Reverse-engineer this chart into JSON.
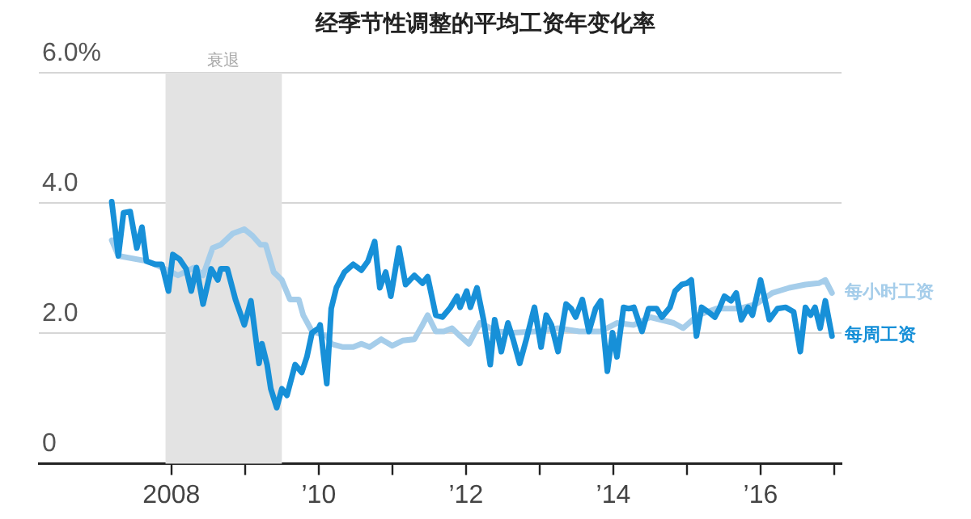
{
  "chart_data": {
    "type": "line",
    "title": "经季节性调整的平均工资年变化率",
    "xlim": [
      2006.2,
      2017.1
    ],
    "ylim": [
      0,
      6
    ],
    "xticks": [
      {
        "value": 2008,
        "label": "2008"
      },
      {
        "value": 2009,
        "label": null
      },
      {
        "value": 2010,
        "label": "’10"
      },
      {
        "value": 2011,
        "label": null
      },
      {
        "value": 2012,
        "label": "’12"
      },
      {
        "value": 2013,
        "label": null
      },
      {
        "value": 2014,
        "label": "’14"
      },
      {
        "value": 2015,
        "label": null
      },
      {
        "value": 2016,
        "label": "’16"
      },
      {
        "value": 2017,
        "label": null
      }
    ],
    "yticks": [
      {
        "value": 0,
        "label": "0"
      },
      {
        "value": 2,
        "label": "2.0"
      },
      {
        "value": 4,
        "label": "4.0"
      },
      {
        "value": 6,
        "label": "6.0%"
      }
    ],
    "grid": "y",
    "marker": "none",
    "bands": [
      {
        "axis": "x",
        "from": 2007.92,
        "to": 2009.5,
        "label": "衰退",
        "color": "#e3e3e3"
      }
    ],
    "series": [
      {
        "name": "每小时工资",
        "color": "#a5cdea",
        "x": [
          2007.19,
          2007.28,
          2007.35,
          2007.44,
          2007.53,
          2007.6,
          2007.66,
          2007.78,
          2007.87,
          2008.09,
          2008.31,
          2008.43,
          2008.56,
          2008.67,
          2008.83,
          2008.99,
          2009.1,
          2009.21,
          2009.28,
          2009.39,
          2009.5,
          2009.61,
          2009.73,
          2009.79,
          2009.91,
          2010.11,
          2010.17,
          2010.33,
          2010.47,
          2010.58,
          2010.69,
          2010.85,
          2011.0,
          2011.14,
          2011.3,
          2011.41,
          2011.48,
          2011.59,
          2011.7,
          2011.81,
          2011.92,
          2012.04,
          2012.19,
          2012.42,
          2012.64,
          2012.93,
          2013.25,
          2013.54,
          2013.83,
          2014.05,
          2014.28,
          2014.5,
          2014.82,
          2014.95,
          2015.15,
          2015.4,
          2015.71,
          2015.94,
          2016.16,
          2016.39,
          2016.61,
          2016.79,
          2016.88,
          2016.97
        ],
        "values": [
          3.43,
          3.19,
          null,
          null,
          null,
          null,
          3.11,
          3.06,
          3.01,
          2.89,
          3.01,
          2.89,
          3.31,
          3.36,
          3.53,
          3.6,
          3.5,
          3.36,
          3.36,
          2.94,
          2.82,
          2.52,
          2.52,
          2.28,
          2.03,
          1.96,
          1.84,
          1.79,
          1.79,
          1.84,
          1.79,
          1.91,
          1.81,
          1.89,
          1.91,
          2.13,
          2.28,
          2.03,
          2.03,
          2.08,
          1.96,
          1.84,
          2.16,
          2.03,
          2.01,
          2.03,
          2.08,
          2.03,
          2.03,
          2.16,
          2.13,
          2.25,
          2.16,
          2.08,
          2.28,
          2.38,
          2.38,
          2.45,
          2.62,
          2.7,
          2.75,
          2.77,
          2.82,
          2.62
        ]
      },
      {
        "name": "每周工资",
        "color": "#1790d8",
        "x": [
          2007.19,
          2007.28,
          2007.35,
          2007.44,
          2007.53,
          2007.6,
          2007.66,
          2007.78,
          2007.87,
          2007.96,
          2008.02,
          2008.11,
          2008.2,
          2008.27,
          2008.34,
          2008.43,
          2008.54,
          2008.63,
          2008.67,
          2008.76,
          2008.87,
          2008.99,
          2009.08,
          2009.19,
          2009.23,
          2009.3,
          2009.35,
          2009.43,
          2009.5,
          2009.57,
          2009.68,
          2009.77,
          2009.84,
          2009.91,
          2010.0,
          2010.02,
          2010.11,
          2010.17,
          2010.24,
          2010.35,
          2010.47,
          2010.58,
          2010.67,
          2010.76,
          2010.83,
          2010.91,
          2010.98,
          2011.09,
          2011.18,
          2011.3,
          2011.41,
          2011.48,
          2011.59,
          2011.68,
          2011.79,
          2011.88,
          2011.92,
          2012.01,
          2012.06,
          2012.15,
          2012.24,
          2012.33,
          2012.39,
          2012.48,
          2012.57,
          2012.64,
          2012.73,
          2012.82,
          2012.93,
          2013.02,
          2013.09,
          2013.16,
          2013.25,
          2013.36,
          2013.43,
          2013.49,
          2013.58,
          2013.67,
          2013.76,
          2013.83,
          2013.92,
          2013.99,
          2014.05,
          2014.14,
          2014.21,
          2014.28,
          2014.39,
          2014.48,
          2014.59,
          2014.66,
          2014.77,
          2014.84,
          2014.93,
          2015.0,
          2015.06,
          2015.13,
          2015.2,
          2015.29,
          2015.38,
          2015.44,
          2015.51,
          2015.6,
          2015.67,
          2015.74,
          2015.83,
          2015.89,
          2016.0,
          2016.12,
          2016.23,
          2016.34,
          2016.45,
          2016.54,
          2016.61,
          2016.68,
          2016.74,
          2016.81,
          2016.88,
          2016.97
        ],
        "values": [
          4.02,
          3.19,
          3.85,
          3.87,
          3.31,
          3.63,
          3.11,
          3.06,
          3.06,
          2.65,
          3.21,
          3.14,
          2.99,
          2.65,
          3.01,
          2.45,
          2.99,
          2.82,
          2.99,
          2.99,
          2.52,
          2.13,
          2.5,
          1.54,
          1.84,
          1.52,
          1.15,
          0.86,
          1.15,
          1.05,
          1.52,
          1.4,
          1.64,
          2.01,
          2.08,
          2.13,
          1.23,
          2.38,
          2.7,
          2.94,
          3.06,
          2.97,
          3.11,
          3.41,
          2.7,
          2.94,
          2.57,
          3.31,
          2.75,
          2.89,
          2.77,
          2.87,
          2.28,
          2.25,
          2.4,
          2.57,
          2.4,
          2.65,
          2.4,
          2.7,
          2.2,
          1.52,
          2.21,
          1.72,
          2.16,
          1.91,
          1.54,
          1.91,
          2.4,
          1.79,
          2.28,
          2.13,
          1.72,
          2.45,
          2.38,
          2.25,
          2.52,
          2.03,
          2.38,
          2.5,
          1.42,
          2.01,
          1.64,
          2.4,
          2.38,
          2.4,
          2.03,
          2.38,
          2.38,
          2.25,
          2.4,
          2.65,
          2.75,
          2.77,
          2.82,
          1.96,
          2.4,
          2.33,
          2.25,
          2.38,
          2.57,
          2.5,
          2.62,
          2.21,
          2.4,
          2.28,
          2.82,
          2.21,
          2.38,
          2.4,
          2.33,
          1.72,
          2.4,
          2.28,
          2.4,
          2.08,
          2.5,
          1.96
        ]
      }
    ]
  }
}
